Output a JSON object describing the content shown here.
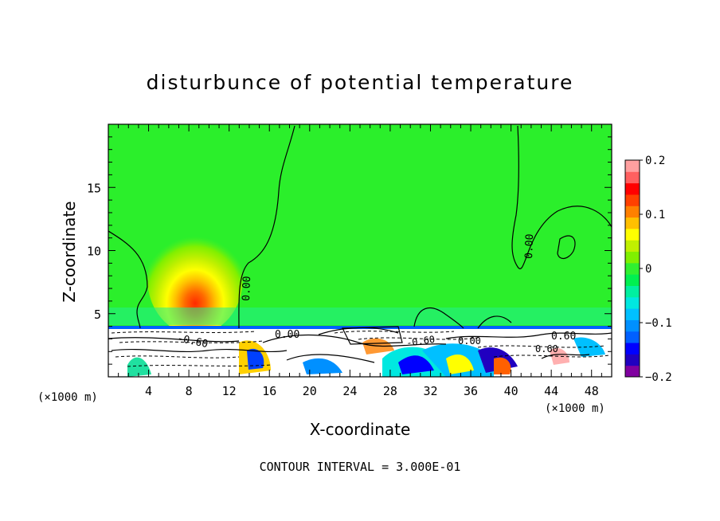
{
  "chart_data": {
    "type": "heatmap",
    "title": "disturbunce of potential temperature",
    "xlabel": "X-coordinate",
    "ylabel": "Z-coordinate",
    "x_unit_left": "(×1000 m)",
    "x_unit_right": "(×1000 m)",
    "xlim": [
      0,
      50
    ],
    "ylim": [
      0,
      20
    ],
    "x_ticks": [
      "4",
      "8",
      "12",
      "16",
      "20",
      "24",
      "28",
      "32",
      "36",
      "40",
      "44",
      "48"
    ],
    "x_tick_values": [
      4,
      8,
      12,
      16,
      20,
      24,
      28,
      32,
      36,
      40,
      44,
      48
    ],
    "y_ticks": [
      "5",
      "10",
      "15"
    ],
    "y_tick_values": [
      5,
      10,
      15
    ],
    "colorbar": {
      "range": [
        -0.2,
        0.2
      ],
      "tick_labels": [
        "0.2",
        "0.1",
        "0",
        "−0.1",
        "−0.2"
      ],
      "tick_values": [
        0.2,
        0.1,
        0,
        -0.1,
        -0.2
      ],
      "colors": [
        "#8000a0",
        "#2000c0",
        "#0000ff",
        "#0060ff",
        "#0090ff",
        "#00c0ff",
        "#00e8e0",
        "#00f0a0",
        "#00f050",
        "#30f030",
        "#80f000",
        "#c0f000",
        "#ffff00",
        "#ffc000",
        "#ff8000",
        "#ff4000",
        "#ff0000",
        "#ff6060",
        "#ffa0a0"
      ]
    },
    "contour_labels": [
      "0.00",
      "0.00",
      "0.00",
      "-0.60",
      "-0.60",
      "0.00",
      "0.60",
      "0.60"
    ],
    "footer": "CONTOUR INTERVAL = 3.000E-01",
    "background_color": "#2bef2b"
  }
}
